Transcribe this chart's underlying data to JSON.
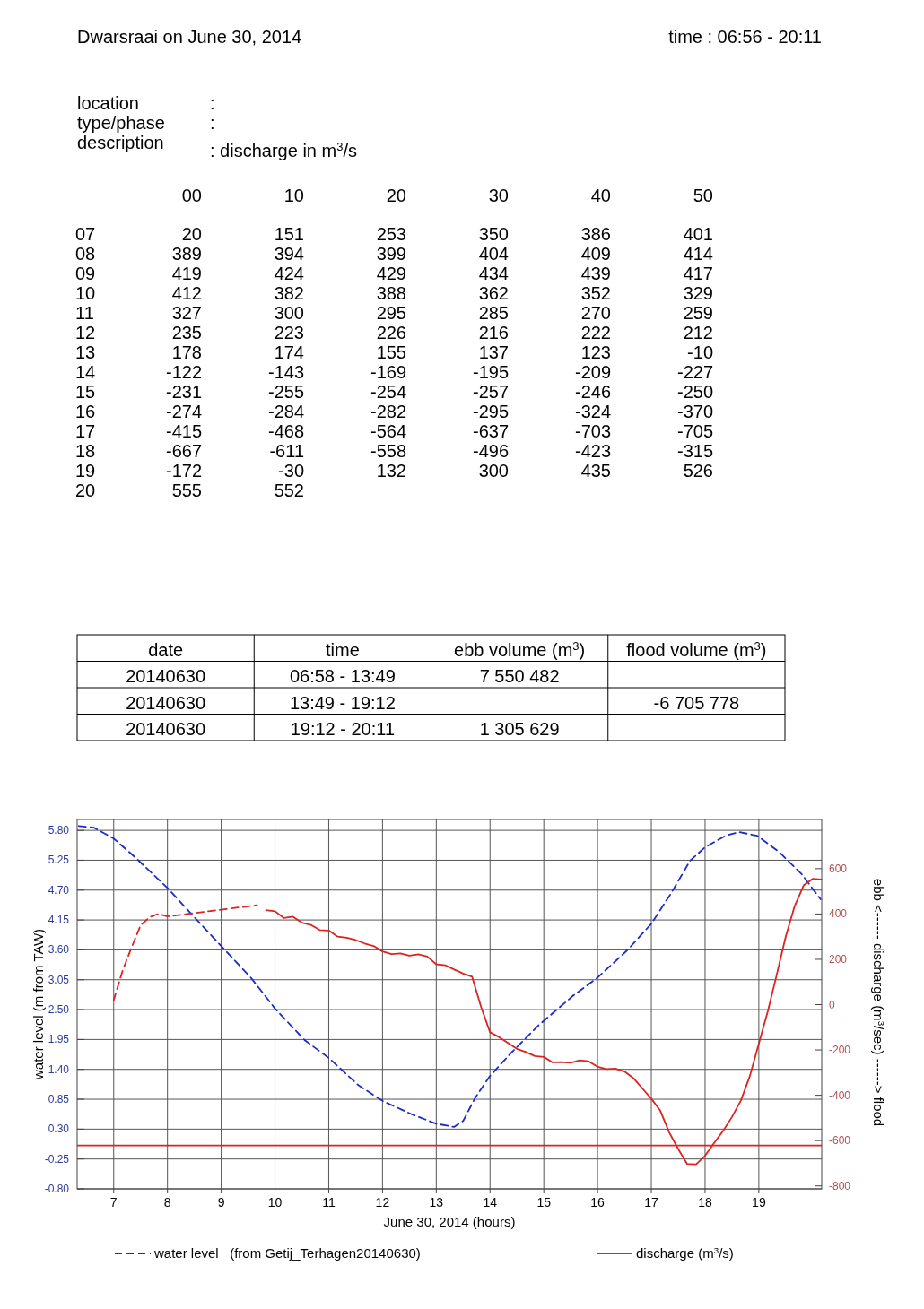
{
  "chart_data": [
    {
      "type": "other",
      "title": "Dwarsraai on June 30, 2014",
      "annotations": [
        "time : 06:56 - 20:11",
        "location :",
        "type/phase :",
        "description : discharge in m$^{3}$/s"
      ]
    },
    {
      "type": "heatmap",
      "data_labels": true,
      "categories": [
        "00",
        "10",
        "20",
        "30",
        "40",
        "50"
      ],
      "y_categories": [
        "07",
        "08",
        "09",
        "10",
        "11",
        "12",
        "13",
        "14",
        "15",
        "16",
        "17",
        "18",
        "19",
        "20"
      ],
      "cells": [
        [
          20,
          151,
          253,
          350,
          386,
          401
        ],
        [
          389,
          394,
          399,
          404,
          409,
          414
        ],
        [
          419,
          424,
          429,
          434,
          439,
          417
        ],
        [
          412,
          382,
          388,
          362,
          352,
          329
        ],
        [
          327,
          300,
          295,
          285,
          270,
          259
        ],
        [
          235,
          223,
          226,
          216,
          222,
          212
        ],
        [
          178,
          174,
          155,
          137,
          123,
          -10
        ],
        [
          -122,
          -143,
          -169,
          -195,
          -209,
          -227
        ],
        [
          -231,
          -255,
          -254,
          -257,
          -246,
          -250
        ],
        [
          -274,
          -284,
          -282,
          -295,
          -324,
          -370
        ],
        [
          -415,
          -468,
          -564,
          -637,
          -703,
          -705
        ],
        [
          -667,
          -611,
          -558,
          -496,
          -423,
          -315
        ],
        [
          -172,
          -30,
          132,
          300,
          435,
          526
        ],
        [
          555,
          552,
          null,
          null,
          null,
          null
        ]
      ]
    },
    {
      "type": "other",
      "categories": [
        "date",
        "time",
        "ebb volume (m$^{3}$)",
        "flood volume (m$^{3}$)"
      ],
      "cell_labels": [
        [
          "20140630",
          "06:58 - 13:49",
          "7 550 482",
          null
        ],
        [
          "20140630",
          "13:49 - 19:12",
          null,
          "-6 705 778"
        ],
        [
          "20140630",
          "19:12 - 20:11",
          "1 305 629",
          null
        ]
      ]
    },
    {
      "type": "line",
      "xlabel": "June 30, 2014   (hours)",
      "ylabel": "water level (m from TAW)",
      "y2label": "ebb <------ discharge (m$^{3}$/sec) ------> flood",
      "xlim": [
        6.32,
        20.17
      ],
      "xticks": [
        7,
        8,
        9,
        10,
        11,
        12,
        13,
        14,
        15,
        16,
        17,
        18,
        19
      ],
      "ylim": [
        -0.8,
        6.0
      ],
      "yticks": [
        {
          "value": 5.8,
          "label": "5.80"
        },
        5.25,
        {
          "value": 4.7,
          "label": "4.70"
        },
        4.15,
        {
          "value": 3.6,
          "label": "3.60"
        },
        3.05,
        {
          "value": 2.5,
          "label": "2.50"
        },
        1.95,
        {
          "value": 1.4,
          "label": "1.40"
        },
        0.85,
        {
          "value": 0.3,
          "label": "0.30"
        },
        -0.25,
        {
          "value": -0.8,
          "label": "-0.80"
        }
      ],
      "y2lim": [
        -813,
        817
      ],
      "y2ticks": [
        -800,
        -600,
        -400,
        -200,
        0,
        200,
        400,
        600
      ],
      "grid": true,
      "legend": "bottom",
      "ref_lines": [
        {
          "axis": "y",
          "value": 0,
          "color": "#dd2222"
        }
      ],
      "series": [
        {
          "name": "water level   (from Getij_Terhagen20140630)",
          "color": "#1c2cc8",
          "axis": "y",
          "line_style": "dashed",
          "x": [
            6.35,
            6.63,
            7.0,
            7.38,
            8.0,
            8.38,
            9.0,
            9.55,
            10.0,
            10.55,
            11.0,
            11.55,
            12.0,
            12.55,
            13.0,
            13.33,
            13.5,
            13.72,
            14.0,
            14.38,
            14.88,
            15.55,
            16.0,
            16.55,
            17.0,
            17.38,
            17.72,
            18.0,
            18.38,
            18.63,
            18.97,
            19.38,
            19.8,
            20.15
          ],
          "values": [
            5.88,
            5.85,
            5.65,
            5.32,
            4.74,
            4.33,
            3.67,
            3.09,
            2.52,
            1.94,
            1.61,
            1.11,
            0.82,
            0.57,
            0.4,
            0.34,
            0.45,
            0.87,
            1.28,
            1.69,
            2.19,
            2.76,
            3.09,
            3.59,
            4.08,
            4.66,
            5.24,
            5.49,
            5.7,
            5.77,
            5.7,
            5.4,
            4.99,
            4.53
          ]
        },
        {
          "color": "#dd2222",
          "axis": "y2",
          "line_style": "dashed",
          "x": [
            7,
            7.1667,
            7.3333,
            7.5,
            7.6667,
            7.8333,
            8,
            8.1667,
            8.3333,
            8.5,
            8.6667,
            8.8333,
            9,
            9.1667,
            9.3333,
            9.5,
            9.6667
          ],
          "values": [
            20,
            151,
            253,
            350,
            386,
            401,
            389,
            394,
            399,
            404,
            409,
            414,
            419,
            424,
            429,
            434,
            439
          ]
        },
        {
          "name": "discharge (m$^{3}$/s)",
          "color": "#dd2222",
          "axis": "y2",
          "line_style": "solid",
          "x": [
            9.8333,
            10,
            10.1667,
            10.3333,
            10.5,
            10.6667,
            10.8333,
            11,
            11.1667,
            11.3333,
            11.5,
            11.6667,
            11.8333,
            12,
            12.1667,
            12.3333,
            12.5,
            12.6667,
            12.8333,
            13,
            13.1667,
            13.3333,
            13.5,
            13.6667,
            13.8333,
            14,
            14.1667,
            14.3333,
            14.5,
            14.6667,
            14.8333,
            15,
            15.1667,
            15.3333,
            15.5,
            15.6667,
            15.8333,
            16,
            16.1667,
            16.3333,
            16.5,
            16.6667,
            16.8333,
            17,
            17.1667,
            17.3333,
            17.5,
            17.6667,
            17.8333,
            18,
            18.1667,
            18.3333,
            18.5,
            18.6667,
            18.8333,
            19,
            19.1667,
            19.3333,
            19.5,
            19.6667,
            19.8333,
            20,
            20.1667
          ],
          "values": [
            417,
            412,
            382,
            388,
            362,
            352,
            329,
            327,
            300,
            295,
            285,
            270,
            259,
            235,
            223,
            226,
            216,
            222,
            212,
            178,
            174,
            155,
            137,
            123,
            -10,
            -122,
            -143,
            -169,
            -195,
            -209,
            -227,
            -231,
            -255,
            -254,
            -257,
            -246,
            -250,
            -274,
            -284,
            -282,
            -295,
            -324,
            -370,
            -415,
            -468,
            -564,
            -637,
            -703,
            -705,
            -667,
            -611,
            -558,
            -496,
            -423,
            -315,
            -172,
            -30,
            132,
            300,
            435,
            526,
            555,
            552
          ]
        }
      ]
    }
  ]
}
